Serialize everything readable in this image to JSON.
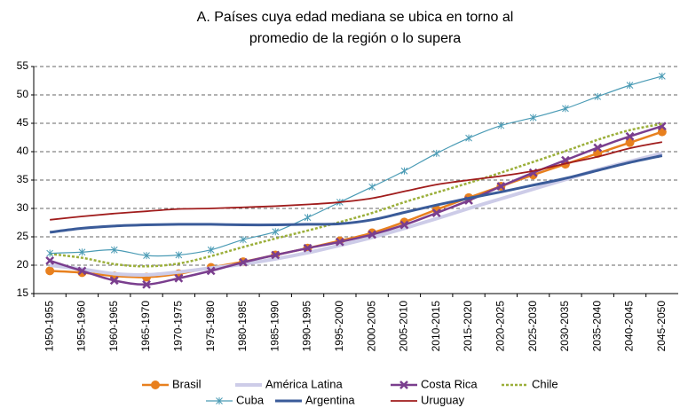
{
  "chart_data": {
    "type": "line",
    "title": [
      "A. Países cuya edad mediana se ubica en torno al",
      "promedio de la región o lo supera"
    ],
    "categories": [
      "1950-1955",
      "1955-1960",
      "1960-1965",
      "1965-1970",
      "1970-1975",
      "1975-1980",
      "1980-1985",
      "1985-1990",
      "1990-1995",
      "1995-2000",
      "2000-2005",
      "2005-2010",
      "2010-2015",
      "2015-2020",
      "2020-2025",
      "2025-2030",
      "2030-2035",
      "2035-2040",
      "2040-2045",
      "2045-2050"
    ],
    "ylim": [
      15,
      55
    ],
    "yticks": [
      15,
      20,
      25,
      30,
      35,
      40,
      45,
      50,
      55
    ],
    "grid": true,
    "series": [
      {
        "name": "Brasil",
        "color": "#E8801E",
        "marker": "circle",
        "width": 2.5,
        "values": [
          19.0,
          18.7,
          18.1,
          17.9,
          18.5,
          19.6,
          20.6,
          21.8,
          23.0,
          24.3,
          25.7,
          27.6,
          29.8,
          31.9,
          33.9,
          35.9,
          37.8,
          39.7,
          41.6,
          43.5
        ]
      },
      {
        "name": "América Latina",
        "color": "#CDCCE8",
        "width": 4,
        "values": [
          20.0,
          19.3,
          18.5,
          18.3,
          18.8,
          19.5,
          20.2,
          21.1,
          22.2,
          23.5,
          24.9,
          26.5,
          28.2,
          30.0,
          31.7,
          33.4,
          35.1,
          36.8,
          38.3,
          39.7
        ]
      },
      {
        "name": "Costa Rica",
        "color": "#7A3E8E",
        "marker": "x",
        "width": 2.5,
        "values": [
          20.8,
          19.0,
          17.3,
          16.6,
          17.7,
          19.0,
          20.5,
          21.8,
          23.0,
          24.1,
          25.4,
          27.1,
          29.2,
          31.4,
          33.9,
          36.3,
          38.5,
          40.7,
          42.7,
          44.5
        ]
      },
      {
        "name": "Chile",
        "color": "#9BAF3A",
        "dash": true,
        "width": 2.5,
        "values": [
          22.0,
          21.3,
          20.2,
          19.8,
          20.3,
          21.6,
          23.2,
          24.7,
          26.1,
          27.6,
          29.2,
          31.1,
          32.8,
          34.5,
          36.3,
          38.2,
          40.1,
          42.1,
          43.8,
          44.9
        ]
      },
      {
        "name": "Cuba",
        "color": "#4A9BB5",
        "marker": "star",
        "width": 1.2,
        "values": [
          22.1,
          22.3,
          22.7,
          21.7,
          21.8,
          22.7,
          24.5,
          25.9,
          28.4,
          31.1,
          33.8,
          36.6,
          39.7,
          42.4,
          44.6,
          46.0,
          47.6,
          49.7,
          51.7,
          53.3
        ]
      },
      {
        "name": "Argentina",
        "color": "#3A5B99",
        "width": 3,
        "values": [
          25.8,
          26.5,
          26.9,
          27.1,
          27.2,
          27.2,
          27.1,
          27.1,
          27.2,
          27.3,
          28.0,
          29.3,
          30.6,
          31.8,
          32.9,
          34.1,
          35.3,
          36.7,
          38.1,
          39.3
        ]
      },
      {
        "name": "Uruguay",
        "color": "#A01C1C",
        "width": 1.8,
        "values": [
          28.0,
          28.6,
          29.1,
          29.5,
          29.9,
          30.0,
          30.2,
          30.4,
          30.7,
          31.1,
          31.8,
          33.0,
          34.2,
          35.0,
          35.7,
          36.6,
          37.9,
          39.1,
          40.6,
          41.7
        ]
      }
    ]
  }
}
